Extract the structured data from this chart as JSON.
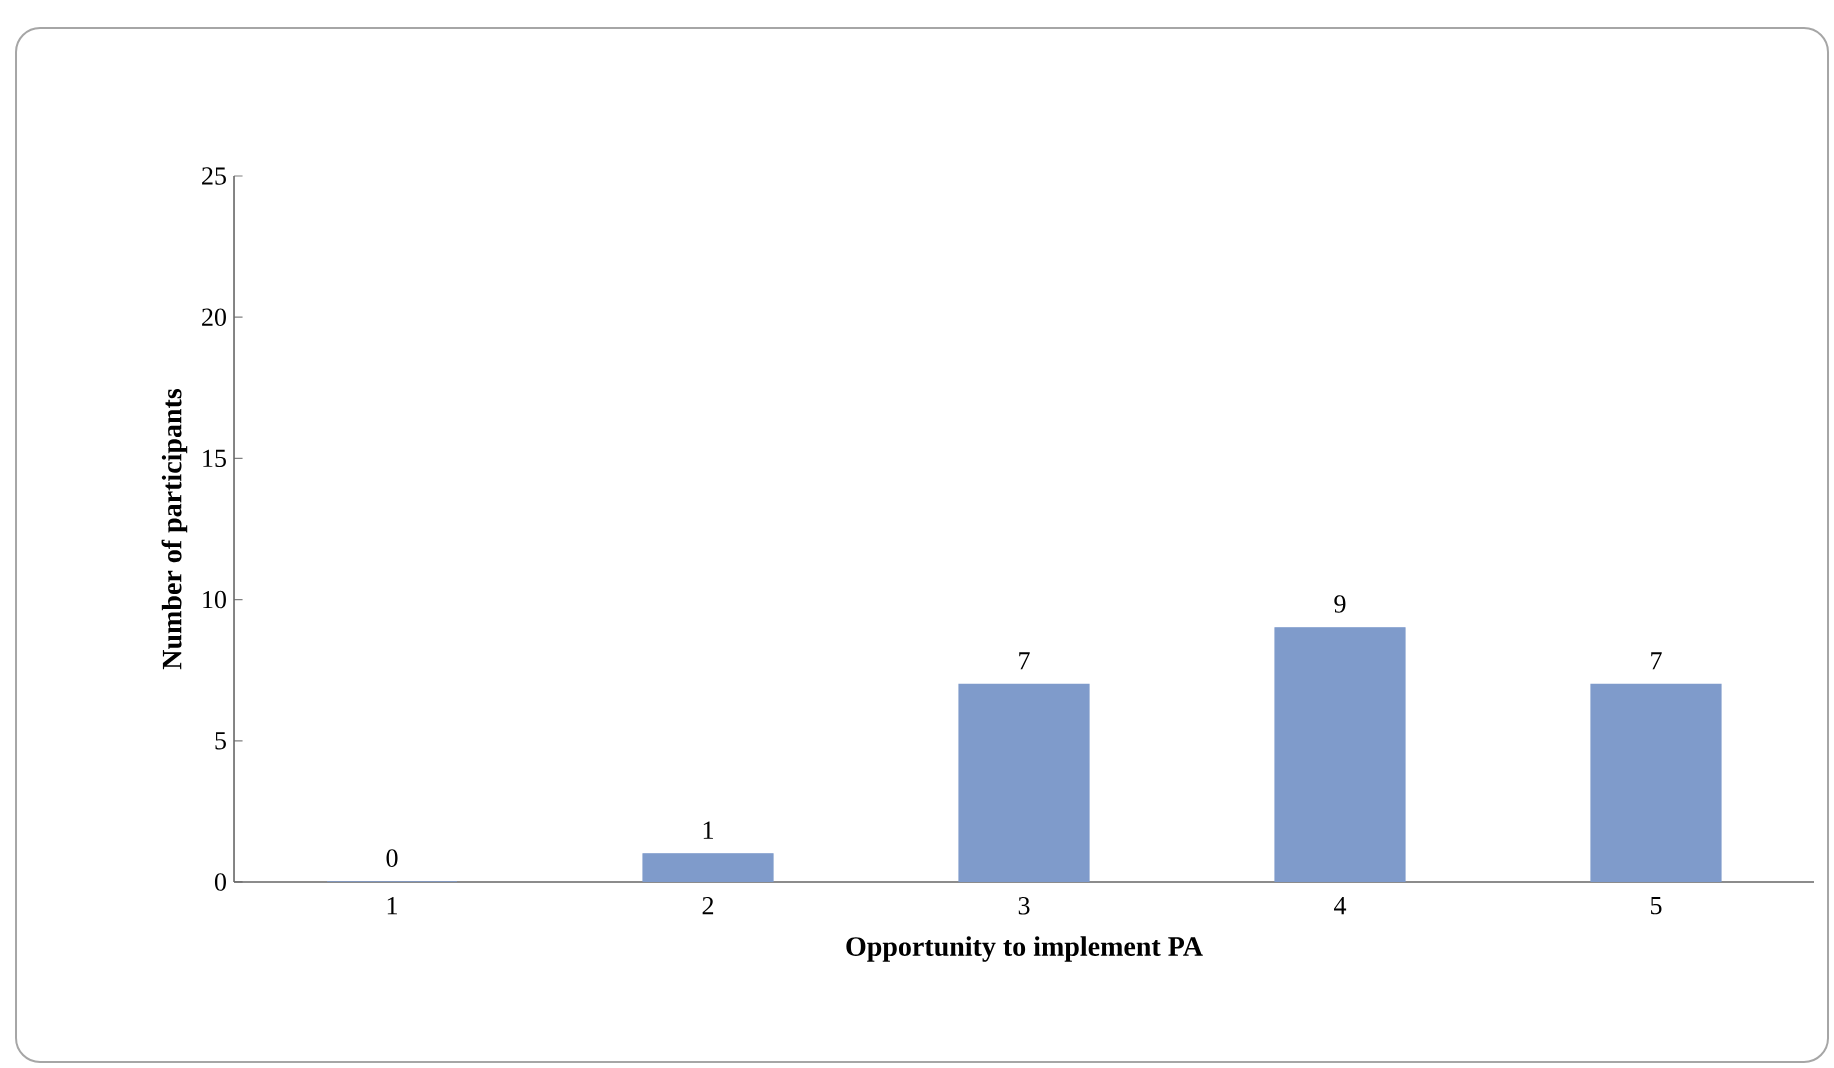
{
  "chart_data": {
    "type": "bar",
    "xlabel": "Opportunity to implement PA",
    "ylabel": "Number of participants",
    "categories": [
      "1",
      "2",
      "3",
      "4",
      "5"
    ],
    "values": [
      0,
      1,
      7,
      9,
      7
    ],
    "color": "#7f9bcb",
    "ylim": [
      0,
      25
    ],
    "yticks": [
      0,
      5,
      10,
      15,
      20,
      25
    ],
    "data_labels": true,
    "grid": false
  }
}
